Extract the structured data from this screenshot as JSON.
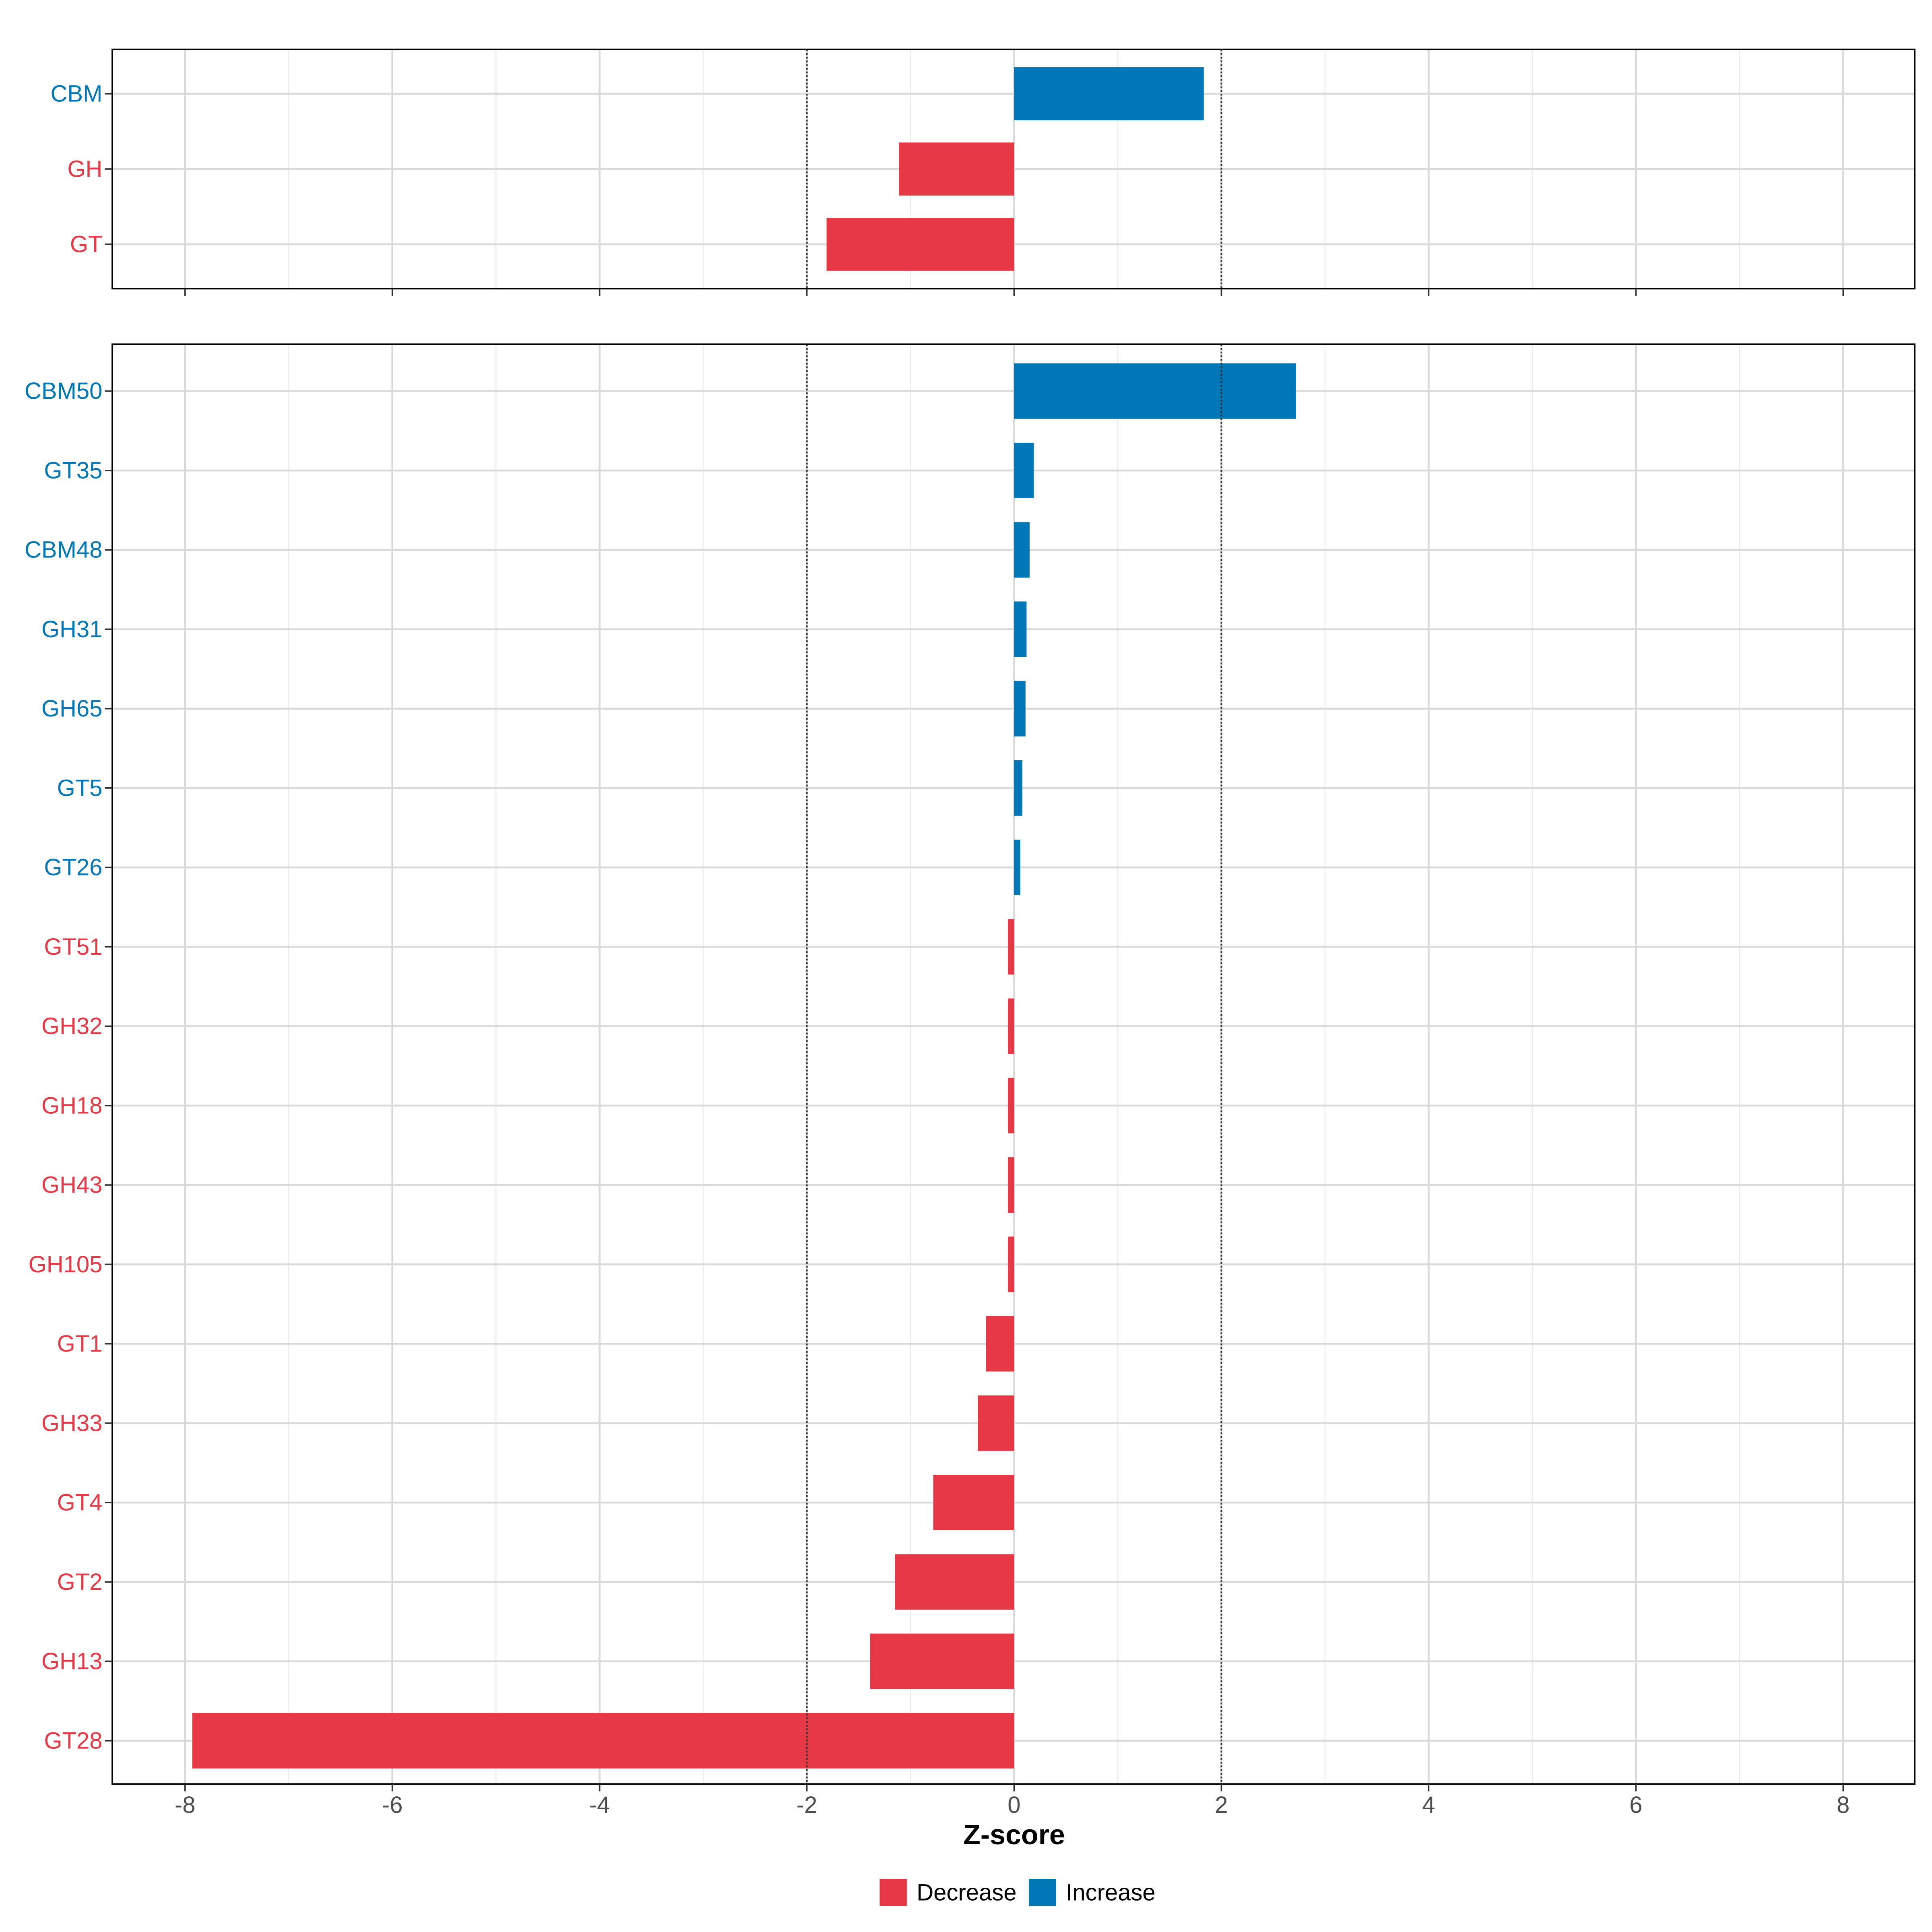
{
  "chart_data": {
    "type": "bar",
    "orientation": "horizontal",
    "xlabel": "Z-score",
    "xlim": [
      -8.7,
      8.7
    ],
    "x_ticks": [
      -8,
      -6,
      -4,
      -2,
      0,
      2,
      4,
      6,
      8
    ],
    "x_tick_labels": [
      "-8",
      "-6",
      "-4",
      "-2",
      "0",
      "2",
      "4",
      "6",
      "8"
    ],
    "reference_lines": [
      -2,
      2
    ],
    "grid": true,
    "legend_position": "bottom",
    "legend": [
      {
        "name": "Decrease",
        "color": "#E63946"
      },
      {
        "name": "Increase",
        "color": "#0077B6"
      }
    ],
    "panels": [
      {
        "categories": [
          "CBM",
          "GH",
          "GT"
        ],
        "values": [
          1.83,
          -1.11,
          -1.81
        ]
      },
      {
        "categories": [
          "CBM50",
          "GT35",
          "CBM48",
          "GH31",
          "GH65",
          "GT5",
          "GT26",
          "GT51",
          "GH32",
          "GH18",
          "GH43",
          "GH105",
          "GT1",
          "GH33",
          "GT4",
          "GT2",
          "GH13",
          "GT28"
        ],
        "values": [
          2.72,
          0.19,
          0.15,
          0.12,
          0.11,
          0.08,
          0.06,
          -0.06,
          -0.06,
          -0.06,
          -0.06,
          -0.06,
          -0.27,
          -0.35,
          -0.78,
          -1.15,
          -1.39,
          -7.93
        ]
      }
    ]
  }
}
